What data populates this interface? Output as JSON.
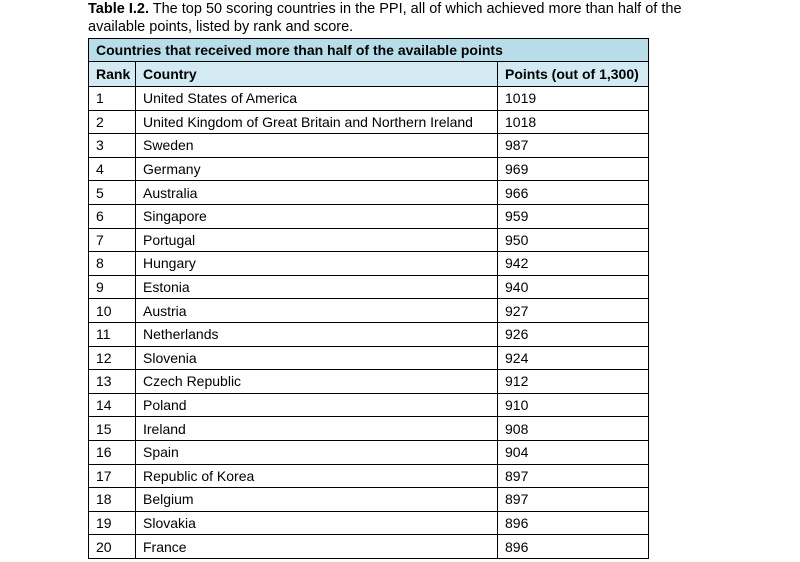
{
  "caption": {
    "label": "Table I.2.",
    "text": "The top 50 scoring countries in the PPI, all of which achieved more than half of the available points, listed by rank and score."
  },
  "table": {
    "title": "Countries that received more than half of the available points",
    "headers": {
      "rank": "Rank",
      "country": "Country",
      "points": "Points (out of 1,300)"
    },
    "rows": [
      {
        "rank": "1",
        "country": "United States of America",
        "points": "1019"
      },
      {
        "rank": "2",
        "country": "United Kingdom of Great Britain and Northern Ireland",
        "points": "1018"
      },
      {
        "rank": "3",
        "country": "Sweden",
        "points": "987"
      },
      {
        "rank": "4",
        "country": "Germany",
        "points": "969"
      },
      {
        "rank": "5",
        "country": "Australia",
        "points": "966"
      },
      {
        "rank": "6",
        "country": "Singapore",
        "points": "959"
      },
      {
        "rank": "7",
        "country": "Portugal",
        "points": "950"
      },
      {
        "rank": "8",
        "country": "Hungary",
        "points": "942"
      },
      {
        "rank": "9",
        "country": "Estonia",
        "points": "940"
      },
      {
        "rank": "10",
        "country": "Austria",
        "points": "927"
      },
      {
        "rank": "11",
        "country": "Netherlands",
        "points": "926"
      },
      {
        "rank": "12",
        "country": "Slovenia",
        "points": "924"
      },
      {
        "rank": "13",
        "country": "Czech Republic",
        "points": "912"
      },
      {
        "rank": "14",
        "country": "Poland",
        "points": "910"
      },
      {
        "rank": "15",
        "country": "Ireland",
        "points": "908"
      },
      {
        "rank": "16",
        "country": "Spain",
        "points": "904"
      },
      {
        "rank": "17",
        "country": "Republic of Korea",
        "points": "897"
      },
      {
        "rank": "18",
        "country": "Belgium",
        "points": "897"
      },
      {
        "rank": "19",
        "country": "Slovakia",
        "points": "896"
      },
      {
        "rank": "20",
        "country": "France",
        "points": "896"
      }
    ],
    "colors": {
      "title_bg": "#b8dde9",
      "header_bg": "#d3eaf2",
      "border": "#000000"
    }
  }
}
